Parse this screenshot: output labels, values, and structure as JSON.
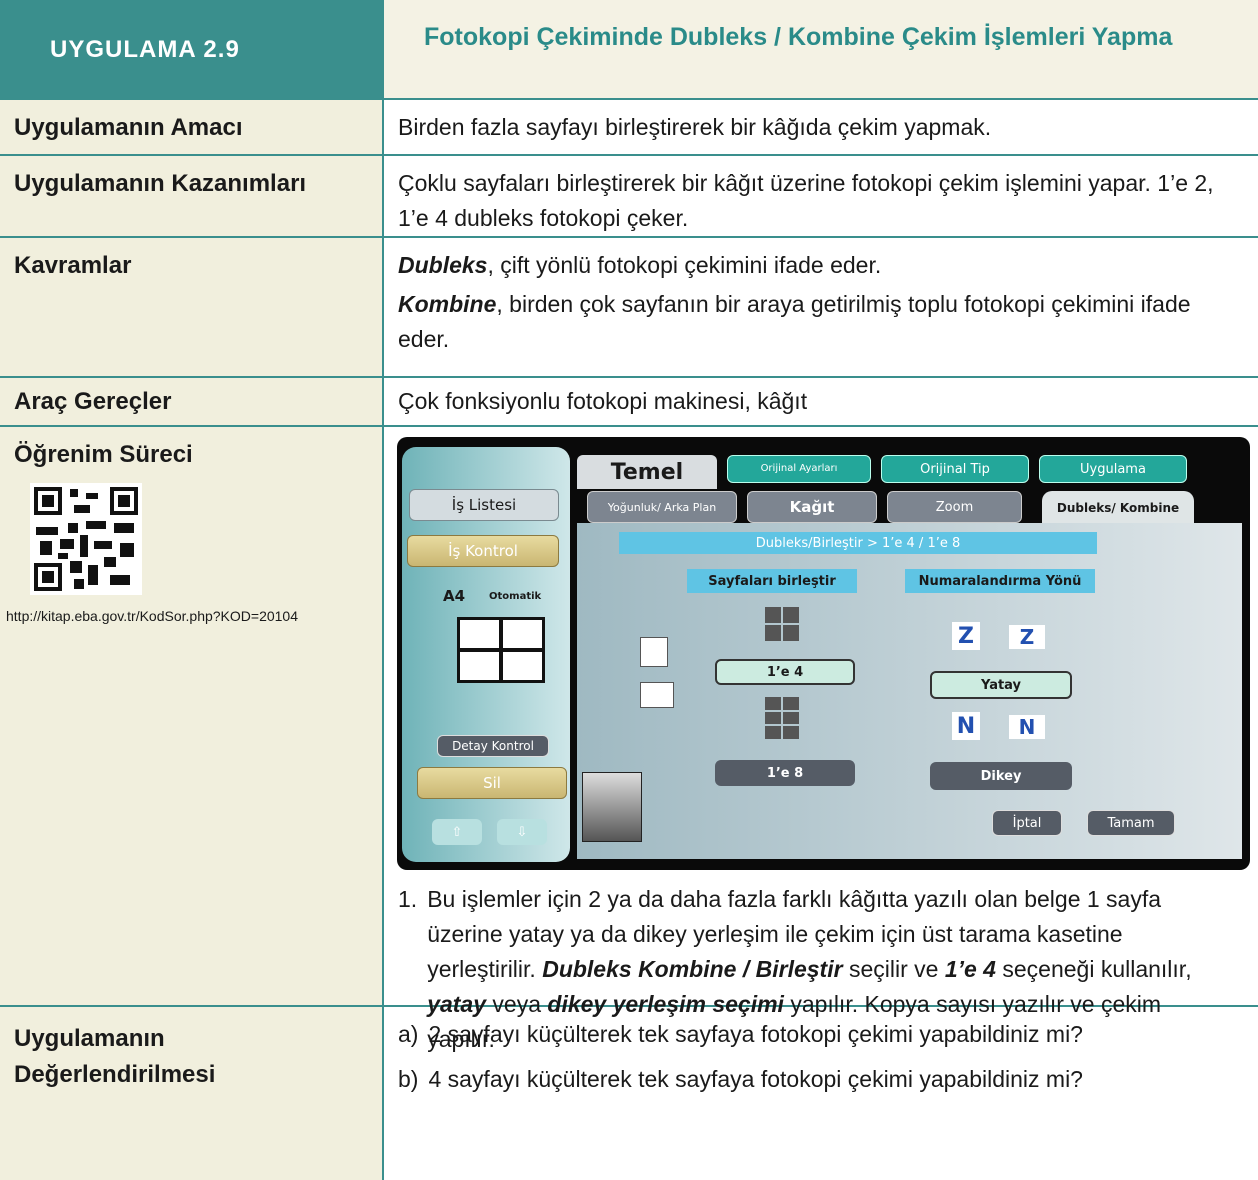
{
  "header": {
    "code": "UYGULAMA 2.9",
    "title": "Fotokopi Çekiminde Dubleks / Kombine Çekim İşlemleri Yapma"
  },
  "rows": [
    {
      "label": "Uygulamanın Amacı",
      "paragraphs": [
        [
          "Birden fazla sayfayı birleştirerek bir kâğıda çekim yapmak."
        ]
      ]
    },
    {
      "label": "Uygulamanın Kazanımları",
      "paragraphs": [
        [
          "Çoklu sayfaları birleştirerek bir kâğıt üzerine fotokopi çekim işlemini yapar. 1’e 2, 1’e 4 dubleks fotokopi çeker."
        ]
      ]
    },
    {
      "label": "Kavramlar",
      "paragraphs": [
        [
          {
            "strong": "Dubleks"
          },
          ", çift yönlü fotokopi çekimini ifade eder."
        ],
        [
          {
            "strong": "Kombine"
          },
          ", birden çok sayfanın bir araya getirilmiş toplu fotokopi çekimini ifade eder."
        ]
      ]
    },
    {
      "label": "Araç Gereçler",
      "paragraphs": [
        [
          "Çok fonksiyonlu fotokopi makinesi, kâğıt"
        ]
      ]
    },
    {
      "label": "Öğrenim Süreci",
      "qr_url": "http://kitap.eba.gov.tr/KodSor.php?KOD=20104",
      "screen": {
        "main_tab": "Temel",
        "tabs": [
          "Orijinal Ayarları",
          "Orijinal Tip",
          "Uygulama"
        ],
        "subtabs": [
          "Yoğunluk/ Arka Plan",
          "Kağıt",
          "Zoom",
          "Dubleks/ Kombine"
        ],
        "side": {
          "job_list": "İş Listesi",
          "job_control": "İş Kontrol",
          "paper": "A4",
          "mode": "Otomatik",
          "detail": "Detay Kontrol",
          "delete": "Sil"
        },
        "path": "Dubleks/Birleştir > 1’e 4 / 1’e 8",
        "combine": {
          "heading": "Sayfaları birleştir",
          "options": [
            "1’e 4",
            "1’e 8"
          ]
        },
        "order": {
          "heading": "Numaralandırma Yönü",
          "options": [
            "Yatay",
            "Dikey"
          ]
        },
        "cancel": "İptal",
        "ok": "Tamam"
      },
      "steps": [
        {
          "marker": "1.",
          "segments": [
            "Bu işlemler için 2 ya da daha fazla farklı kâğıtta yazılı olan belge 1 sayfa üzerine yatay ya da dikey yerleşim ile çekim için üst tarama kasetine yerleştirilir. ",
            {
              "strong": "Dubleks Kombine / Birleştir"
            },
            " seçilir ve ",
            {
              "strong": "1’e 4"
            },
            " seçeneği kullanılır, ",
            {
              "strong": "yatay"
            },
            " veya ",
            {
              "strong": "dikey yerleşim seçimi"
            },
            " yapılır. Kopya sayısı yazılır ve çekim yapılır."
          ]
        }
      ]
    },
    {
      "label": "Uygulamanın Değerlendirilmesi",
      "items": [
        {
          "marker": "a)",
          "text": "2 sayfayı küçülterek tek sayfaya fotokopi çekimi yapabildiniz mi?"
        },
        {
          "marker": "b)",
          "text": "4 sayfayı küçülterek tek sayfaya fotokopi çekimi yapabildiniz mi?"
        }
      ]
    }
  ]
}
